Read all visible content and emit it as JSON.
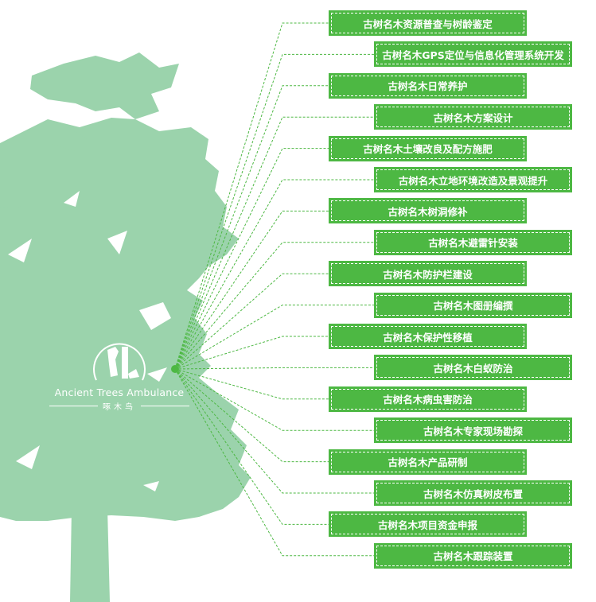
{
  "colors": {
    "tree": "#9bd3ac",
    "box": "#4db843",
    "line": "#4db843",
    "text": "#ffffff"
  },
  "logo": {
    "english": "Ancient Trees Ambulance",
    "chinese": "啄木鸟",
    "icon": "woodpecker-tree-logo-icon"
  },
  "items": [
    {
      "label": "古树名木资源普查与树龄鉴定"
    },
    {
      "label": "古树名木GPS定位与信息化管理系统开发"
    },
    {
      "label": "古树名木日常养护"
    },
    {
      "label": "古树名木方案设计"
    },
    {
      "label": "古树名木土壤改良及配方施肥"
    },
    {
      "label": "古树名木立地环境改造及景观提升"
    },
    {
      "label": "古树名木树洞修补"
    },
    {
      "label": "古树名木避雷针安装"
    },
    {
      "label": "古树名木防护栏建设"
    },
    {
      "label": "古树名木图册编撰"
    },
    {
      "label": "古树名木保护性移植"
    },
    {
      "label": "古树名木白蚁防治"
    },
    {
      "label": "古树名木病虫害防治"
    },
    {
      "label": "古树名木专家现场勘探"
    },
    {
      "label": "古树名木产品研制"
    },
    {
      "label": "古树名木仿真树皮布置"
    },
    {
      "label": "古树名木项目资金申报"
    },
    {
      "label": "古树名木跟踪装置"
    }
  ]
}
